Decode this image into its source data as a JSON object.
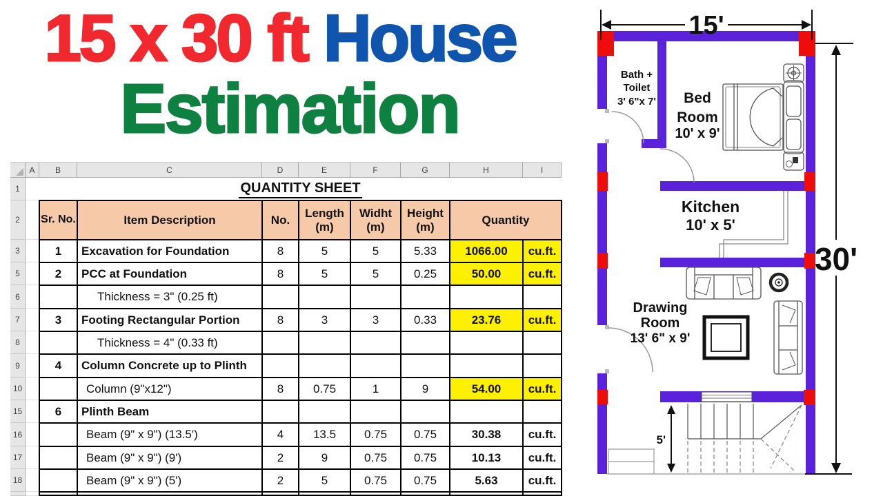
{
  "title": {
    "part1": "15 x 30 ft ",
    "part2": "House",
    "line2": "Estimation",
    "colors": {
      "part1": "#f1282e",
      "part2": "#0f55ae",
      "line2": "#0e8040"
    }
  },
  "spreadsheet": {
    "column_letters": [
      "A",
      "B",
      "C",
      "D",
      "E",
      "F",
      "G",
      "H",
      "I"
    ],
    "row_numbers": [
      "1",
      "2",
      "3",
      "5",
      "6",
      "7",
      "8",
      "9",
      "10",
      "15",
      "16",
      "17",
      "18"
    ],
    "sheet_title": "QUANTITY SHEET",
    "header": {
      "sr_no": "Sr. No.",
      "item": "Item Description",
      "no": "No.",
      "length": "Length\n(m)",
      "width": "Widht\n(m)",
      "height": "Height\n(m)",
      "quantity": "Quantity"
    },
    "rows": [
      {
        "sr": "1",
        "item": "Excavation for Foundation",
        "bold": true,
        "indent": 0,
        "no": "8",
        "len": "5",
        "wid": "5",
        "hgt": "5.33",
        "qty": "1066.00",
        "unit": "cu.ft.",
        "highlight": true
      },
      {
        "sr": "2",
        "item": "PCC at Foundation",
        "bold": true,
        "indent": 0,
        "no": "8",
        "len": "5",
        "wid": "5",
        "hgt": "0.25",
        "qty": "50.00",
        "unit": "cu.ft.",
        "highlight": true
      },
      {
        "sr": "",
        "item": "Thickness = 3\" (0.25 ft)",
        "bold": false,
        "indent": 2,
        "no": "",
        "len": "",
        "wid": "",
        "hgt": "",
        "qty": "",
        "unit": "",
        "highlight": false
      },
      {
        "sr": "3",
        "item": "Footing Rectangular Portion",
        "bold": true,
        "indent": 0,
        "no": "8",
        "len": "3",
        "wid": "3",
        "hgt": "0.33",
        "qty": "23.76",
        "unit": "cu.ft.",
        "highlight": true
      },
      {
        "sr": "",
        "item": "Thickness = 4\" (0.33 ft)",
        "bold": false,
        "indent": 2,
        "no": "",
        "len": "",
        "wid": "",
        "hgt": "",
        "qty": "",
        "unit": "",
        "highlight": false
      },
      {
        "sr": "4",
        "item": "Column Concrete up to Plinth",
        "bold": true,
        "indent": 0,
        "no": "",
        "len": "",
        "wid": "",
        "hgt": "",
        "qty": "",
        "unit": "",
        "highlight": false
      },
      {
        "sr": "",
        "item": "Column (9\"x12\")",
        "bold": false,
        "indent": 1,
        "no": "8",
        "len": "0.75",
        "wid": "1",
        "hgt": "9",
        "qty": "54.00",
        "unit": "cu.ft.",
        "highlight": true
      },
      {
        "sr": "6",
        "item": "Plinth Beam",
        "bold": true,
        "indent": 0,
        "no": "",
        "len": "",
        "wid": "",
        "hgt": "",
        "qty": "",
        "unit": "",
        "highlight": false
      },
      {
        "sr": "",
        "item": "Beam (9\" x 9\") (13.5')",
        "bold": false,
        "indent": 1,
        "no": "4",
        "len": "13.5",
        "wid": "0.75",
        "hgt": "0.75",
        "qty": "30.38",
        "unit": "cu.ft.",
        "highlight": false
      },
      {
        "sr": "",
        "item": "Beam (9\" x 9\") (9')",
        "bold": false,
        "indent": 1,
        "no": "2",
        "len": "9",
        "wid": "0.75",
        "hgt": "0.75",
        "qty": "10.13",
        "unit": "cu.ft.",
        "highlight": false
      },
      {
        "sr": "",
        "item": "Beam (9\" x 9\") (5')",
        "bold": false,
        "indent": 1,
        "no": "2",
        "len": "5",
        "wid": "0.75",
        "hgt": "0.75",
        "qty": "5.63",
        "unit": "cu.ft.",
        "highlight": false
      }
    ]
  },
  "floor_plan": {
    "dimensions": {
      "width": "15'",
      "height": "30'",
      "stair": "5'"
    },
    "rooms": {
      "bath": {
        "line1": "Bath +",
        "line2": "Toilet",
        "line3": "3' 6\"x 7'"
      },
      "bed": {
        "line1": "Bed",
        "line2": "Room",
        "line3": "10' x 9'"
      },
      "kitchen": {
        "line1": "Kitchen",
        "line2": "10'  x 5'"
      },
      "drawing": {
        "line1": "Drawing",
        "line2": "Room",
        "line3": "13' 6\" x 9'"
      }
    },
    "colors": {
      "wall": "#5a23db",
      "column_marker": "#ee0d0d"
    }
  }
}
